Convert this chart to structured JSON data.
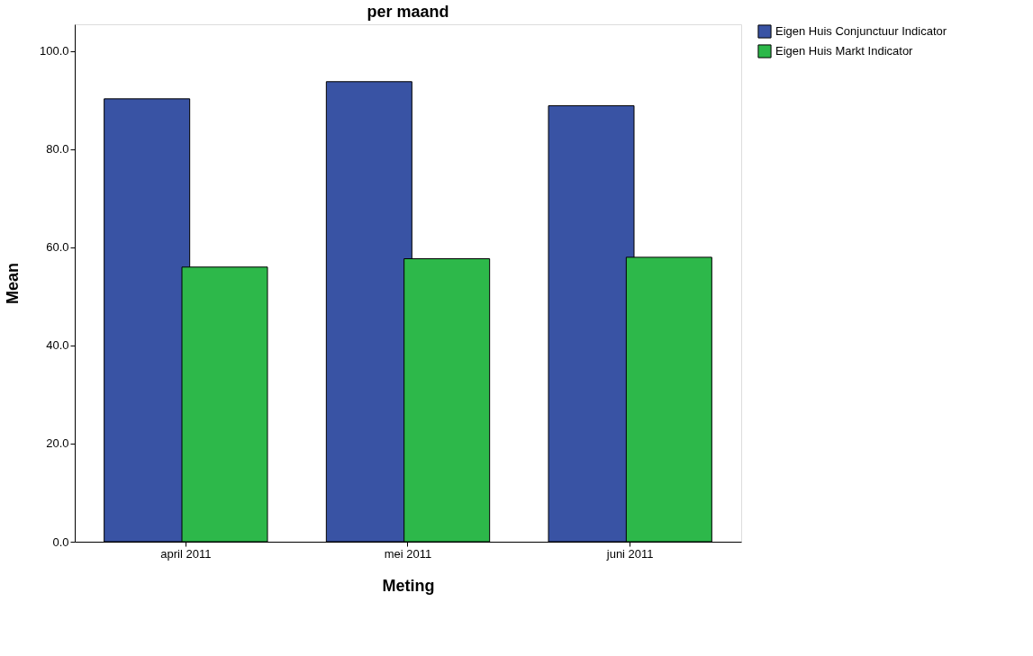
{
  "chart_data": {
    "type": "bar",
    "title": "per maand",
    "xlabel": "Meting",
    "ylabel": "Mean",
    "categories": [
      "april 2011",
      "mei 2011",
      "juni 2011"
    ],
    "series": [
      {
        "name": "Eigen Huis Conjunctuur Indicator",
        "color": "#3953a4",
        "values": [
          90.3,
          93.8,
          88.9
        ]
      },
      {
        "name": "Eigen Huis Markt Indicator",
        "color": "#2db84a",
        "values": [
          56.0,
          57.7,
          58.0
        ]
      }
    ],
    "ylim": [
      0,
      105.5
    ],
    "yticks": [
      {
        "value": 0,
        "label": "0.0"
      },
      {
        "value": 20,
        "label": "20.0"
      },
      {
        "value": 40,
        "label": "40.0"
      },
      {
        "value": 60,
        "label": "60.0"
      },
      {
        "value": 80,
        "label": "80.0"
      },
      {
        "value": 100,
        "label": "100.0"
      }
    ],
    "grid": false,
    "legend": "top right"
  }
}
